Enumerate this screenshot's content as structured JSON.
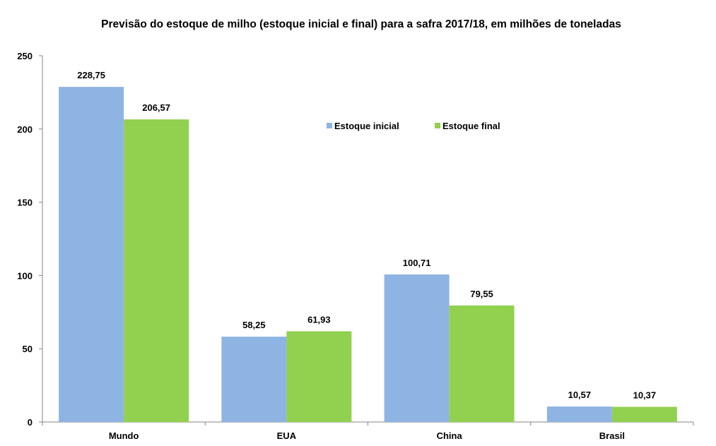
{
  "chart_data": {
    "type": "bar",
    "title": "Previsão do estoque de milho (estoque inicial e final) para a safra 2017/18, em milhões de toneladas",
    "categories": [
      "Mundo",
      "EUA",
      "China",
      "Brasil"
    ],
    "series": [
      {
        "name": "Estoque inicial",
        "values": [
          228.75,
          58.25,
          100.71,
          10.57
        ],
        "labels": [
          "228,75",
          "58,25",
          "100,71",
          "10,57"
        ],
        "color": "#8eb4e3"
      },
      {
        "name": "Estoque final",
        "values": [
          206.57,
          61.93,
          79.55,
          10.37
        ],
        "labels": [
          "206,57",
          "61,93",
          "79,55",
          "10,37"
        ],
        "color": "#92d050"
      }
    ],
    "ylim": [
      0,
      250
    ],
    "yticks": [
      0,
      50,
      100,
      150,
      200,
      250
    ],
    "xlabel": "",
    "ylabel": "",
    "grid": false,
    "legend": "top-center"
  }
}
